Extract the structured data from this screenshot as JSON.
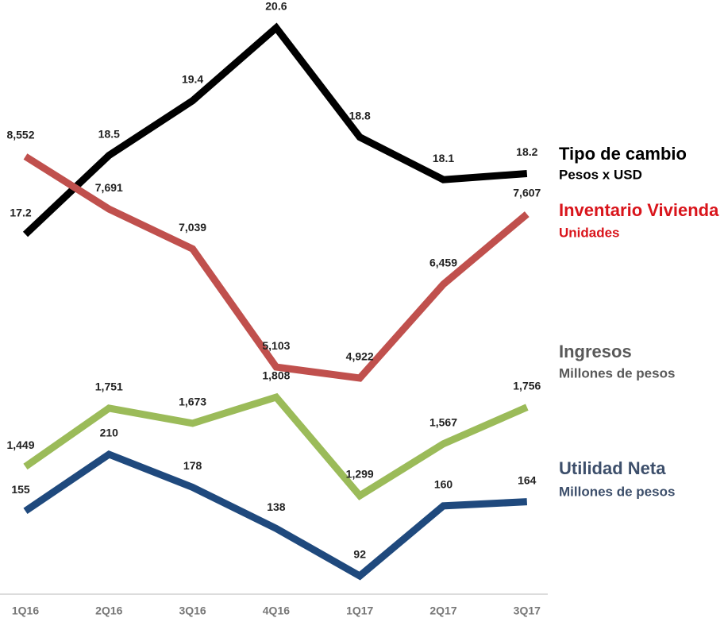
{
  "chart_data": {
    "type": "line",
    "categories": [
      "1Q16",
      "2Q16",
      "3Q16",
      "4Q16",
      "1Q17",
      "2Q17",
      "3Q17"
    ],
    "series": [
      {
        "name": "Tipo de cambio",
        "unit": "Pesos x USD",
        "color": "#000000",
        "label_color": "#000000",
        "values": [
          17.2,
          18.5,
          19.4,
          20.6,
          18.8,
          18.1,
          18.2
        ]
      },
      {
        "name": "Inventario Vivienda",
        "unit": "Unidades",
        "color": "#c0504d",
        "label_color": "#d9141b",
        "values": [
          8552,
          7691,
          7039,
          5103,
          4922,
          6459,
          7607
        ],
        "value_labels": [
          "8,552",
          "7,691",
          "7,039",
          "5,103",
          "4,922",
          "6,459",
          "7,607"
        ]
      },
      {
        "name": "Ingresos",
        "unit": "Millones de pesos",
        "color": "#9bbb59",
        "label_color": "#595959",
        "values": [
          1449,
          1751,
          1673,
          1808,
          1299,
          1567,
          1756
        ],
        "value_labels": [
          "1,449",
          "1,751",
          "1,673",
          "1,808",
          "1,299",
          "1,567",
          "1,756"
        ]
      },
      {
        "name": "Utilidad Neta",
        "unit": "Millones de pesos",
        "color": "#1f497d",
        "label_color": "#3d4f6b",
        "values": [
          155,
          210,
          178,
          138,
          92,
          160,
          164
        ]
      }
    ]
  }
}
